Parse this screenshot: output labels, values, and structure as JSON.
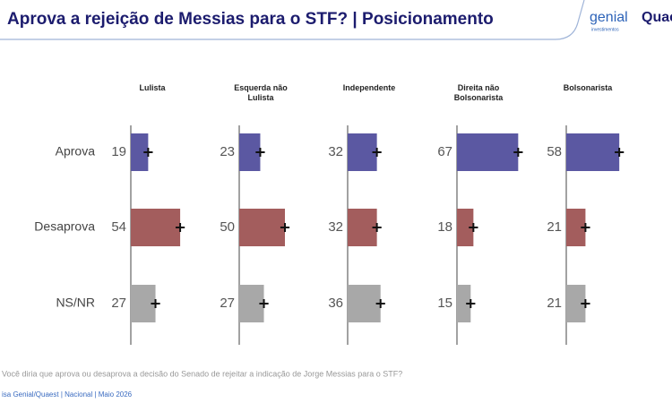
{
  "header": {
    "logo": "genial",
    "logo_sub": "investimentos",
    "logo2": "Quaest"
  },
  "chart_data": {
    "type": "bar",
    "title": "Aprova a rejeição de Messias para o STF? | Posicionamento",
    "categories": [
      "Aprova",
      "Desaprova",
      "NS/NR"
    ],
    "colors": [
      "#5b58a2",
      "#a35d5d",
      "#a8a8a8"
    ],
    "xlim": [
      0,
      100
    ],
    "panels": [
      {
        "name": "Lulista",
        "values": [
          19,
          54,
          27
        ],
        "errors": [
          5,
          5,
          5
        ]
      },
      {
        "name": "Esquerda não Lulista",
        "values": [
          23,
          50,
          27
        ],
        "errors": [
          5,
          5,
          5
        ]
      },
      {
        "name": "Independente",
        "values": [
          32,
          32,
          36
        ],
        "errors": [
          5,
          5,
          5
        ]
      },
      {
        "name": "Direita não Bolsonarista",
        "values": [
          67,
          18,
          15
        ],
        "errors": [
          5,
          5,
          5
        ]
      },
      {
        "name": "Bolsonarista",
        "values": [
          58,
          21,
          21
        ],
        "errors": [
          5,
          5,
          5
        ]
      }
    ],
    "note": "Você diria que aprova ou desaprova a decisão do Senado de rejeitar a indicação de Jorge Messias para o STF?",
    "source": "isa Genial/Quaest | Nacional | Maio 2026"
  }
}
